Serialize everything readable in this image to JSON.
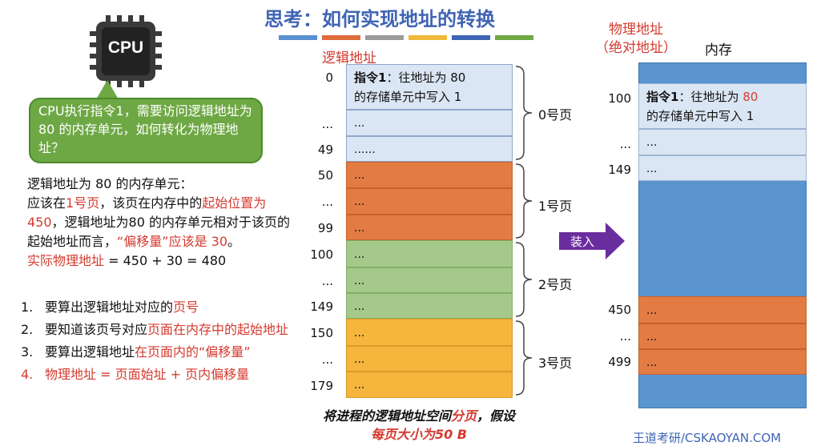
{
  "title": "思考：如何实现地址的转换",
  "color_bars": [
    "#5b8fd1",
    "#e06b3c",
    "#9a9a9a",
    "#f0b93a",
    "#3f64b4",
    "#6ea844"
  ],
  "cpu": {
    "label": "CPU"
  },
  "bubble_text": "CPU执行指令1，需要访问逻辑地址为 80 的内存单元，如何转化为物理地址？",
  "explanation": {
    "line1": "逻辑地址为 80 的内存单元：",
    "p1": "应该在",
    "p2": "1号页",
    "p3": "，该页在内存中的",
    "p4": "起始位置为 450",
    "p5": "，逻辑地址为80 的内存单元相对于该页的起始地址而言，",
    "p6": "“偏移量”应该是 30",
    "p7": "。",
    "phys_label": "实际物理地址",
    "phys_eq": " = 450 + 30 = 480"
  },
  "steps": [
    {
      "num": "1.",
      "a": "要算出逻辑地址对应的",
      "b": "页号"
    },
    {
      "num": "2.",
      "a": "要知道该页号对应",
      "b": "页面在内存中的起始地址"
    },
    {
      "num": "3.",
      "a": "要算出逻辑地址",
      "b": "在页面内的“偏移量”"
    },
    {
      "num": "4.",
      "a": "物理地址 = 页面始址 + 页内偏移量",
      "b": ""
    }
  ],
  "logical": {
    "label": "逻辑地址",
    "addresses": [
      "0",
      "...",
      "49",
      "50",
      "...",
      "99",
      "100",
      "...",
      "149",
      "150",
      "...",
      "179"
    ],
    "cell_first_bold": "指令1",
    "cell_first_rest": "：往地址为 80",
    "cell_first_line2": "的存储单元中写入 1",
    "cells": [
      "...",
      "......",
      "...",
      "...",
      "...",
      "...",
      "...",
      "...",
      "...",
      "...",
      "..."
    ],
    "pages": [
      "0号页",
      "1号页",
      "2号页",
      "3号页"
    ]
  },
  "caption": {
    "a": "将进程的逻辑地址空间",
    "b": "分页",
    "c": "，假设",
    "d": "每页大小为50 B"
  },
  "arrow_label": "装入",
  "physical": {
    "label_line1": "物理地址",
    "label_line2": "（绝对地址）",
    "mem_label": "内存",
    "addresses": [
      "100",
      "...",
      "149",
      "450",
      "...",
      "499"
    ],
    "cell_first_bold": "指令1",
    "cell_first_rest": "：往地址为 ",
    "cell_first_num": "80",
    "cell_first_line2": "的存储单元中写入 1",
    "cells": [
      "...",
      "...",
      "...",
      "...",
      "..."
    ]
  },
  "watermark": "王道考研/CSKAOYAN.COM"
}
